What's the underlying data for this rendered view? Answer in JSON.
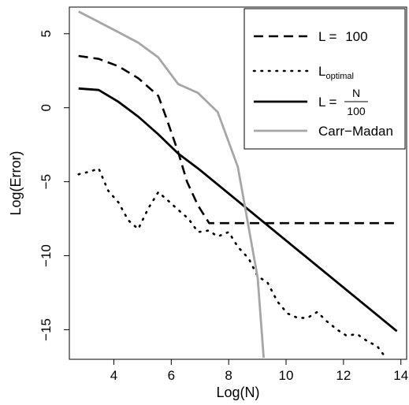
{
  "chart_data": {
    "type": "line",
    "title": "",
    "xlabel": "Log(N)",
    "ylabel": "Log(Error)",
    "xlim": [
      2.45,
      14.2
    ],
    "ylim": [
      -17,
      6.8
    ],
    "x_ticks": [
      4,
      6,
      8,
      10,
      12,
      14
    ],
    "y_ticks": [
      5,
      0,
      -5,
      -10,
      -15
    ],
    "grid": false,
    "legend_position": "top-right",
    "legend": {
      "l100": {
        "prefix": "L = ",
        "value": "100"
      },
      "loptimal": {
        "base": "L",
        "subscript": "optimal"
      },
      "lfrac": {
        "prefix": "L = ",
        "numerator": "N",
        "denominator": "100"
      },
      "carr": {
        "label": "Carr−Madan"
      }
    },
    "series": [
      {
        "id": "l100",
        "style": "dashed",
        "color": "#000000",
        "x": [
          2.77,
          3.47,
          4.16,
          4.85,
          5.55,
          5.85,
          6.24,
          6.55,
          6.93,
          7.32,
          7.62,
          8.32,
          9.01,
          9.7,
          10.4,
          11.09,
          11.78,
          12.48,
          13.17,
          13.86
        ],
        "y": [
          3.5,
          3.3,
          2.8,
          2.0,
          0.8,
          -0.8,
          -3.0,
          -5.0,
          -6.6,
          -7.8,
          -7.8,
          -7.8,
          -7.8,
          -7.8,
          -7.8,
          -7.8,
          -7.8,
          -7.8,
          -7.8,
          -7.8
        ]
      },
      {
        "id": "loptimal",
        "style": "dotted",
        "color": "#000000",
        "x": [
          2.77,
          3.2,
          3.47,
          3.8,
          4.16,
          4.5,
          4.85,
          5.2,
          5.55,
          5.9,
          6.24,
          6.6,
          6.93,
          7.3,
          7.62,
          8.0,
          8.32,
          8.7,
          9.01,
          9.35,
          9.7,
          10.05,
          10.4,
          10.75,
          11.09,
          11.4,
          11.78,
          12.1,
          12.48,
          12.85,
          13.17,
          13.4
        ],
        "y": [
          -4.5,
          -4.3,
          -4.1,
          -5.6,
          -6.4,
          -7.6,
          -8.2,
          -6.8,
          -5.7,
          -6.3,
          -6.9,
          -7.5,
          -8.4,
          -8.3,
          -8.7,
          -8.4,
          -9.4,
          -10.2,
          -11.4,
          -11.8,
          -13.1,
          -13.9,
          -14.2,
          -14.2,
          -13.8,
          -14.4,
          -15.0,
          -15.4,
          -15.3,
          -15.8,
          -16.1,
          -16.7
        ]
      },
      {
        "id": "lfrac",
        "style": "solid",
        "color": "#000000",
        "x": [
          2.77,
          3.47,
          4.16,
          4.85,
          5.55,
          6.24,
          6.93,
          13.86
        ],
        "y": [
          1.3,
          1.2,
          0.4,
          -0.6,
          -1.8,
          -3.1,
          -4.1,
          -15.1
        ]
      },
      {
        "id": "carr",
        "style": "solid",
        "color": "#a6a6a6",
        "x": [
          2.77,
          3.47,
          4.16,
          4.85,
          5.55,
          6.24,
          6.93,
          7.62,
          8.32,
          9.01,
          9.22
        ],
        "y": [
          6.5,
          5.8,
          5.1,
          4.4,
          3.4,
          1.6,
          1.0,
          -0.3,
          -4.0,
          -11.5,
          -16.9
        ]
      }
    ]
  }
}
